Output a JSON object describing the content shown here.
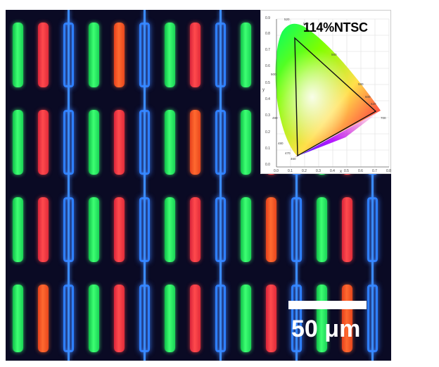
{
  "inset": {
    "ntsc_label": "114%NTSC",
    "y_ticks": [
      "0.9",
      "0.8",
      "0.7",
      "0.6",
      "0.5",
      "0.4",
      "0.3",
      "0.2",
      "0.1",
      "0.0"
    ],
    "x_ticks": [
      "0.0",
      "0.1",
      "0.2",
      "0.3",
      "0.4",
      "0.5",
      "0.6",
      "0.7",
      "0.8"
    ],
    "wavelength_labels": [
      "520",
      "540",
      "560",
      "580",
      "600",
      "620",
      "700",
      "500",
      "490",
      "480",
      "470",
      "460"
    ],
    "axis_letter_x": "x",
    "axis_letter_y": "y"
  },
  "scale_bar": {
    "label": "50 μm"
  },
  "colors": {
    "green_subpixel": "#3dff72",
    "red_subpixel": "#ff4a4d",
    "blue_subpixel": "#2d7fff",
    "background": "#0a0a24"
  }
}
